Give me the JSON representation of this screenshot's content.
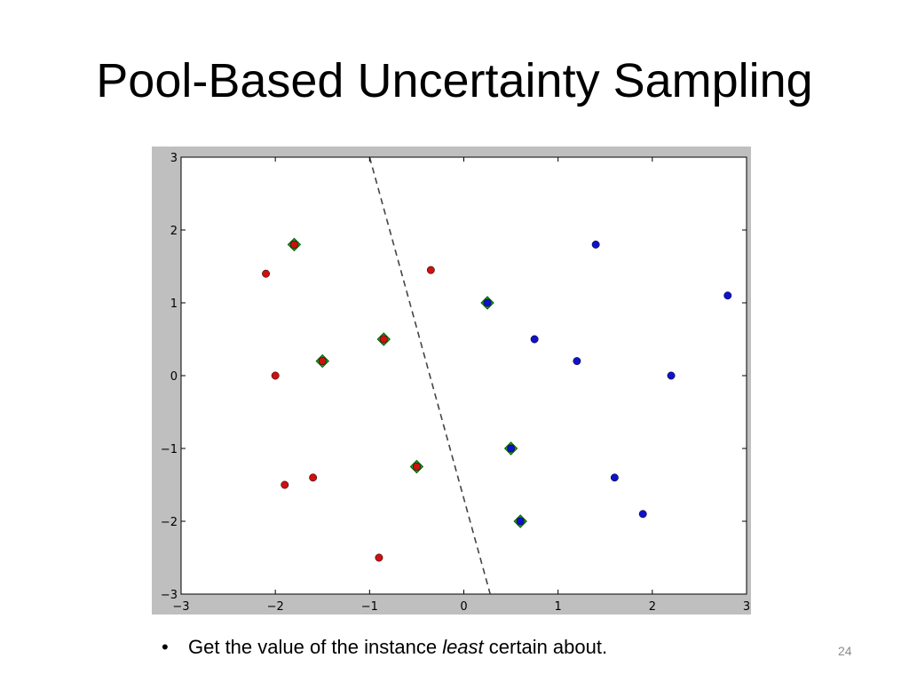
{
  "slide": {
    "title": "Pool-Based Uncertainty Sampling",
    "bullet": {
      "symbol": "•",
      "text_before": "Get the value of the instance ",
      "emphasis": "least",
      "text_after": " certain about."
    },
    "page_number": "24"
  },
  "chart_data": {
    "type": "scatter",
    "title": "",
    "xlabel": "",
    "ylabel": "",
    "xlim": [
      -3,
      3
    ],
    "ylim": [
      -3,
      3
    ],
    "x_ticks": [
      -3,
      -2,
      -1,
      0,
      1,
      2,
      3
    ],
    "y_ticks": [
      -3,
      -2,
      -1,
      0,
      1,
      2,
      3
    ],
    "x_tick_labels": [
      "−3",
      "−2",
      "−1",
      "0",
      "1",
      "2",
      "3"
    ],
    "y_tick_labels": [
      "−3",
      "−2",
      "−1",
      "0",
      "1",
      "2",
      "3"
    ],
    "grid": false,
    "series": [
      {
        "color": "#cc1111",
        "points": [
          {
            "x": -1.8,
            "y": 1.8,
            "highlighted": true
          },
          {
            "x": -2.1,
            "y": 1.4,
            "highlighted": false
          },
          {
            "x": -0.35,
            "y": 1.45,
            "highlighted": false
          },
          {
            "x": -0.85,
            "y": 0.5,
            "highlighted": true
          },
          {
            "x": -1.5,
            "y": 0.2,
            "highlighted": true
          },
          {
            "x": -2.0,
            "y": 0.0,
            "highlighted": false
          },
          {
            "x": -0.5,
            "y": -1.25,
            "highlighted": true
          },
          {
            "x": -1.6,
            "y": -1.4,
            "highlighted": false
          },
          {
            "x": -1.9,
            "y": -1.5,
            "highlighted": false
          },
          {
            "x": -0.9,
            "y": -2.5,
            "highlighted": false
          }
        ]
      },
      {
        "color": "#1111cc",
        "points": [
          {
            "x": 1.4,
            "y": 1.8,
            "highlighted": false
          },
          {
            "x": 2.8,
            "y": 1.1,
            "highlighted": false
          },
          {
            "x": 0.25,
            "y": 1.0,
            "highlighted": true
          },
          {
            "x": 0.75,
            "y": 0.5,
            "highlighted": false
          },
          {
            "x": 1.2,
            "y": 0.2,
            "highlighted": false
          },
          {
            "x": 2.2,
            "y": 0.0,
            "highlighted": false
          },
          {
            "x": 0.5,
            "y": -1.0,
            "highlighted": true
          },
          {
            "x": 1.6,
            "y": -1.4,
            "highlighted": false
          },
          {
            "x": 1.9,
            "y": -1.9,
            "highlighted": false
          },
          {
            "x": 0.6,
            "y": -2.0,
            "highlighted": true
          }
        ]
      }
    ],
    "highlight_marker": {
      "shape": "diamond",
      "color": "#22aa22"
    },
    "decision_boundary": {
      "style": "dashed",
      "color": "#444444",
      "points": [
        [
          -1.0,
          3.0
        ],
        [
          0.28,
          -3.0
        ]
      ]
    }
  }
}
